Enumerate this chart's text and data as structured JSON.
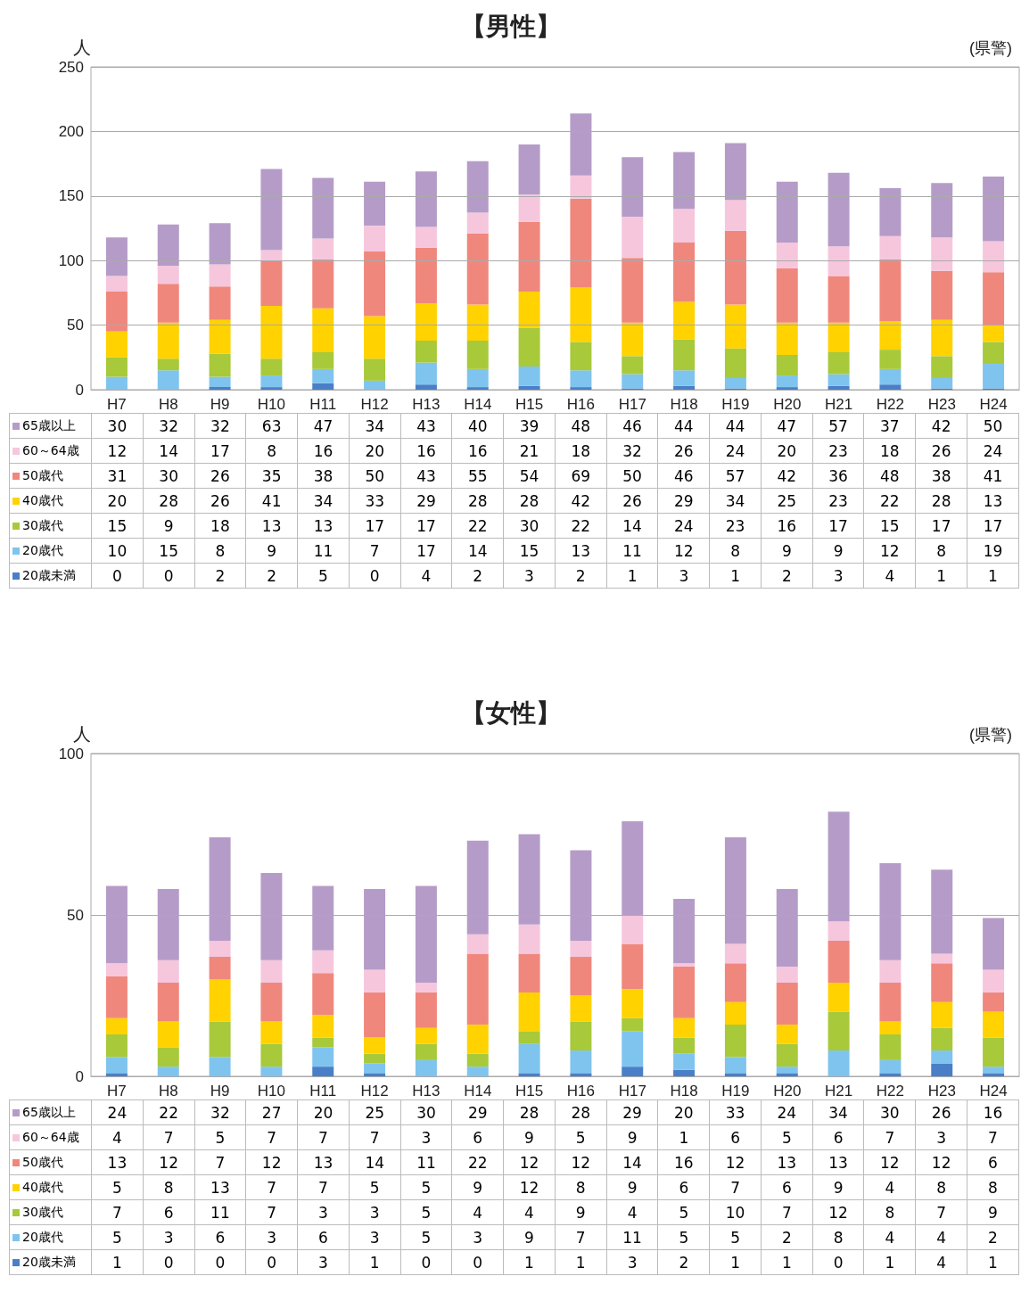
{
  "chart_data": [
    {
      "type": "bar",
      "title": "【男性】",
      "ylabel": "人",
      "annotations": [
        "(県警)"
      ],
      "stacked": true,
      "grid": "y",
      "legend": "bottom",
      "data_labels": true,
      "categories": [
        "H7",
        "H8",
        "H9",
        "H10",
        "H11",
        "H12",
        "H13",
        "H14",
        "H15",
        "H16",
        "H17",
        "H18",
        "H19",
        "H20",
        "H21",
        "H22",
        "H23",
        "H24"
      ],
      "ylim": [
        0,
        250
      ],
      "yticks": [
        0,
        50,
        100,
        150,
        200,
        250
      ],
      "series": [
        {
          "name": "20歳未満",
          "color": "#4a7fc8",
          "values": [
            0,
            0,
            2,
            2,
            5,
            0,
            4,
            2,
            3,
            2,
            1,
            3,
            1,
            2,
            3,
            4,
            1,
            1
          ]
        },
        {
          "name": "20歳代",
          "color": "#7fc4ee",
          "values": [
            10,
            15,
            8,
            9,
            11,
            7,
            17,
            14,
            15,
            13,
            11,
            12,
            8,
            9,
            9,
            12,
            8,
            19
          ]
        },
        {
          "name": "30歳代",
          "color": "#a8c93a",
          "values": [
            15,
            9,
            18,
            13,
            13,
            17,
            17,
            22,
            30,
            22,
            14,
            24,
            23,
            16,
            17,
            15,
            17,
            17
          ]
        },
        {
          "name": "40歳代",
          "color": "#ffd200",
          "values": [
            20,
            28,
            26,
            41,
            34,
            33,
            29,
            28,
            28,
            42,
            26,
            29,
            34,
            25,
            23,
            22,
            28,
            13
          ]
        },
        {
          "name": "50歳代",
          "color": "#f0877d",
          "values": [
            31,
            30,
            26,
            35,
            38,
            50,
            43,
            55,
            54,
            69,
            50,
            46,
            57,
            42,
            36,
            48,
            38,
            41
          ]
        },
        {
          "name": "60～64歳",
          "color": "#f6c6dc",
          "values": [
            12,
            14,
            17,
            8,
            16,
            20,
            16,
            16,
            21,
            18,
            32,
            26,
            24,
            20,
            23,
            18,
            26,
            24
          ]
        },
        {
          "name": "65歳以上",
          "color": "#b59cc8",
          "values": [
            30,
            32,
            32,
            63,
            47,
            34,
            43,
            40,
            39,
            48,
            46,
            44,
            44,
            47,
            57,
            37,
            42,
            50
          ]
        }
      ]
    },
    {
      "type": "bar",
      "title": "【女性】",
      "ylabel": "人",
      "annotations": [
        "(県警)"
      ],
      "stacked": true,
      "grid": "y",
      "legend": "bottom",
      "data_labels": true,
      "categories": [
        "H7",
        "H8",
        "H9",
        "H10",
        "H11",
        "H12",
        "H13",
        "H14",
        "H15",
        "H16",
        "H17",
        "H18",
        "H19",
        "H20",
        "H21",
        "H22",
        "H23",
        "H24"
      ],
      "ylim": [
        0,
        100
      ],
      "yticks": [
        0,
        50,
        100
      ],
      "series": [
        {
          "name": "20歳未満",
          "color": "#4a7fc8",
          "values": [
            1,
            0,
            0,
            0,
            3,
            1,
            0,
            0,
            1,
            1,
            3,
            2,
            1,
            1,
            0,
            1,
            4,
            1
          ]
        },
        {
          "name": "20歳代",
          "color": "#7fc4ee",
          "values": [
            5,
            3,
            6,
            3,
            6,
            3,
            5,
            3,
            9,
            7,
            11,
            5,
            5,
            2,
            8,
            4,
            4,
            2
          ]
        },
        {
          "name": "30歳代",
          "color": "#a8c93a",
          "values": [
            7,
            6,
            11,
            7,
            3,
            3,
            5,
            4,
            4,
            9,
            4,
            5,
            10,
            7,
            12,
            8,
            7,
            9
          ]
        },
        {
          "name": "40歳代",
          "color": "#ffd200",
          "values": [
            5,
            8,
            13,
            7,
            7,
            5,
            5,
            9,
            12,
            8,
            9,
            6,
            7,
            6,
            9,
            4,
            8,
            8
          ]
        },
        {
          "name": "50歳代",
          "color": "#f0877d",
          "values": [
            13,
            12,
            7,
            12,
            13,
            14,
            11,
            22,
            12,
            12,
            14,
            16,
            12,
            13,
            13,
            12,
            12,
            6
          ]
        },
        {
          "name": "60～64歳",
          "color": "#f6c6dc",
          "values": [
            4,
            7,
            5,
            7,
            7,
            7,
            3,
            6,
            9,
            5,
            9,
            1,
            6,
            5,
            6,
            7,
            3,
            7
          ]
        },
        {
          "name": "65歳以上",
          "color": "#b59cc8",
          "values": [
            24,
            22,
            32,
            27,
            20,
            25,
            30,
            29,
            28,
            28,
            29,
            20,
            33,
            24,
            34,
            30,
            26,
            16
          ]
        }
      ]
    }
  ]
}
